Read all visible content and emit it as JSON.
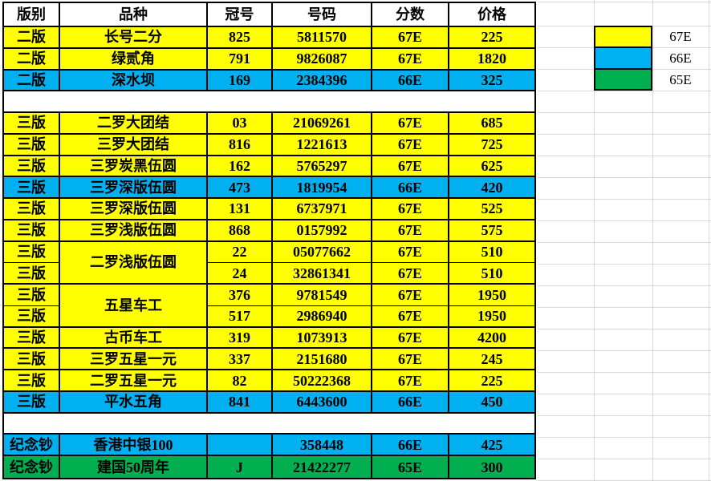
{
  "colors": {
    "yellow": "#FFFF00",
    "blue": "#00B0F0",
    "green": "#00B050",
    "triangle_indicator": "#007A00",
    "gridline": "#D9D9D9",
    "border": "#000000"
  },
  "table": {
    "headers": [
      "版别",
      "品种",
      "冠号",
      "号码",
      "分数",
      "价格"
    ],
    "rows": [
      {
        "type": "data",
        "edition": "二版",
        "variety": "长号二分",
        "prefix": "825",
        "number": "5811570",
        "grade": "67E",
        "price": "225",
        "color": "yellow",
        "tri": {
          "prefix": false,
          "number": false,
          "price": true
        }
      },
      {
        "type": "data",
        "edition": "二版",
        "variety": "绿贰角",
        "prefix": "791",
        "number": "9826087",
        "grade": "67E",
        "price": "1820",
        "color": "yellow",
        "tri": {
          "prefix": false,
          "number": false,
          "price": true
        }
      },
      {
        "type": "data",
        "edition": "二版",
        "variety": "深水坝",
        "prefix": "169",
        "number": "2384396",
        "grade": "66E",
        "price": "325",
        "color": "blue",
        "tri": {
          "prefix": false,
          "number": false,
          "price": true
        }
      },
      {
        "type": "empty"
      },
      {
        "type": "data",
        "edition": "三版",
        "variety": "二罗大团结",
        "prefix": "03",
        "number": "21069261",
        "grade": "67E",
        "price": "685",
        "color": "yellow",
        "tri": {
          "prefix": true,
          "number": true,
          "price": true
        }
      },
      {
        "type": "data",
        "edition": "三版",
        "variety": "三罗大团结",
        "prefix": "816",
        "number": "1221613",
        "grade": "67E",
        "price": "725",
        "color": "yellow",
        "tri": {
          "prefix": true,
          "number": true,
          "price": true
        }
      },
      {
        "type": "data",
        "edition": "三版",
        "variety": "三罗炭黑伍圆",
        "prefix": "162",
        "number": "5765297",
        "grade": "67E",
        "price": "625",
        "color": "yellow",
        "tri": {
          "prefix": true,
          "number": true,
          "price": true
        }
      },
      {
        "type": "data",
        "edition": "三版",
        "variety": "三罗深版伍圆",
        "prefix": "473",
        "number": "1819954",
        "grade": "66E",
        "price": "420",
        "color": "blue",
        "tri": {
          "prefix": true,
          "number": true,
          "price": true
        }
      },
      {
        "type": "data",
        "edition": "三版",
        "variety": "三罗深版伍圆",
        "prefix": "131",
        "number": "6737971",
        "grade": "67E",
        "price": "525",
        "color": "yellow",
        "tri": {
          "prefix": true,
          "number": true,
          "price": true
        }
      },
      {
        "type": "data",
        "edition": "三版",
        "variety": "三罗浅版伍圆",
        "prefix": "868",
        "number": "0157992",
        "grade": "67E",
        "price": "575",
        "color": "yellow",
        "tri": {
          "prefix": true,
          "number": true,
          "price": true
        }
      },
      {
        "type": "data",
        "edition": "三版",
        "variety": "二罗浅版伍圆",
        "variety_span": 2,
        "prefix": "22",
        "number": "05077662",
        "grade": "67E",
        "price": "510",
        "color": "yellow",
        "thin_bottom": true,
        "tri": {
          "prefix": true,
          "number": true,
          "price": true
        }
      },
      {
        "type": "data",
        "edition": "三版",
        "variety": null,
        "prefix": "24",
        "number": "32861341",
        "grade": "67E",
        "price": "510",
        "color": "yellow",
        "tri": {
          "prefix": true,
          "number": true,
          "price": true
        }
      },
      {
        "type": "data",
        "edition": "三版",
        "variety": "五星车工",
        "variety_span": 2,
        "prefix": "376",
        "number": "9781549",
        "grade": "67E",
        "price": "1950",
        "color": "yellow",
        "thin_bottom": true,
        "tri": {
          "prefix": true,
          "number": true,
          "price": true
        }
      },
      {
        "type": "data",
        "edition": "三版",
        "variety": null,
        "prefix": "517",
        "number": "2986940",
        "grade": "67E",
        "price": "1950",
        "color": "yellow",
        "tri": {
          "prefix": true,
          "number": true,
          "price": true
        }
      },
      {
        "type": "data",
        "edition": "三版",
        "variety": "古币车工",
        "prefix": "319",
        "number": "1073913",
        "grade": "67E",
        "price": "4200",
        "color": "yellow",
        "tri": {
          "prefix": true,
          "number": true,
          "price": true
        }
      },
      {
        "type": "data",
        "edition": "三版",
        "variety": "三罗五星一元",
        "prefix": "337",
        "number": "2151680",
        "grade": "67E",
        "price": "245",
        "color": "yellow",
        "tri": {
          "prefix": true,
          "number": true,
          "price": true
        }
      },
      {
        "type": "data",
        "edition": "三版",
        "variety": "二罗五星一元",
        "prefix": "82",
        "number": "50222368",
        "grade": "67E",
        "price": "225",
        "color": "yellow",
        "tri": {
          "prefix": true,
          "number": true,
          "price": true
        }
      },
      {
        "type": "data",
        "edition": "三版",
        "variety": "平水五角",
        "prefix": "841",
        "number": "6443600",
        "grade": "66E",
        "price": "450",
        "color": "blue",
        "tri": {
          "prefix": true,
          "number": true,
          "price": true
        }
      },
      {
        "type": "empty"
      },
      {
        "type": "data",
        "edition": "纪念钞",
        "variety": "香港中银100",
        "prefix": "",
        "number": "358448",
        "grade": "66E",
        "price": "425",
        "color": "blue",
        "tri": {
          "prefix": false,
          "number": true,
          "price": true
        }
      },
      {
        "type": "data",
        "edition": "纪念钞",
        "variety": "建国50周年",
        "prefix": "J",
        "number": "21422277",
        "grade": "65E",
        "price": "300",
        "color": "green",
        "tri": {
          "prefix": false,
          "number": true,
          "price": true
        }
      }
    ]
  },
  "legend": {
    "items": [
      {
        "label": "67E",
        "color": "#FFFF00"
      },
      {
        "label": "66E",
        "color": "#00B0F0"
      },
      {
        "label": "65E",
        "color": "#00B050"
      }
    ]
  }
}
